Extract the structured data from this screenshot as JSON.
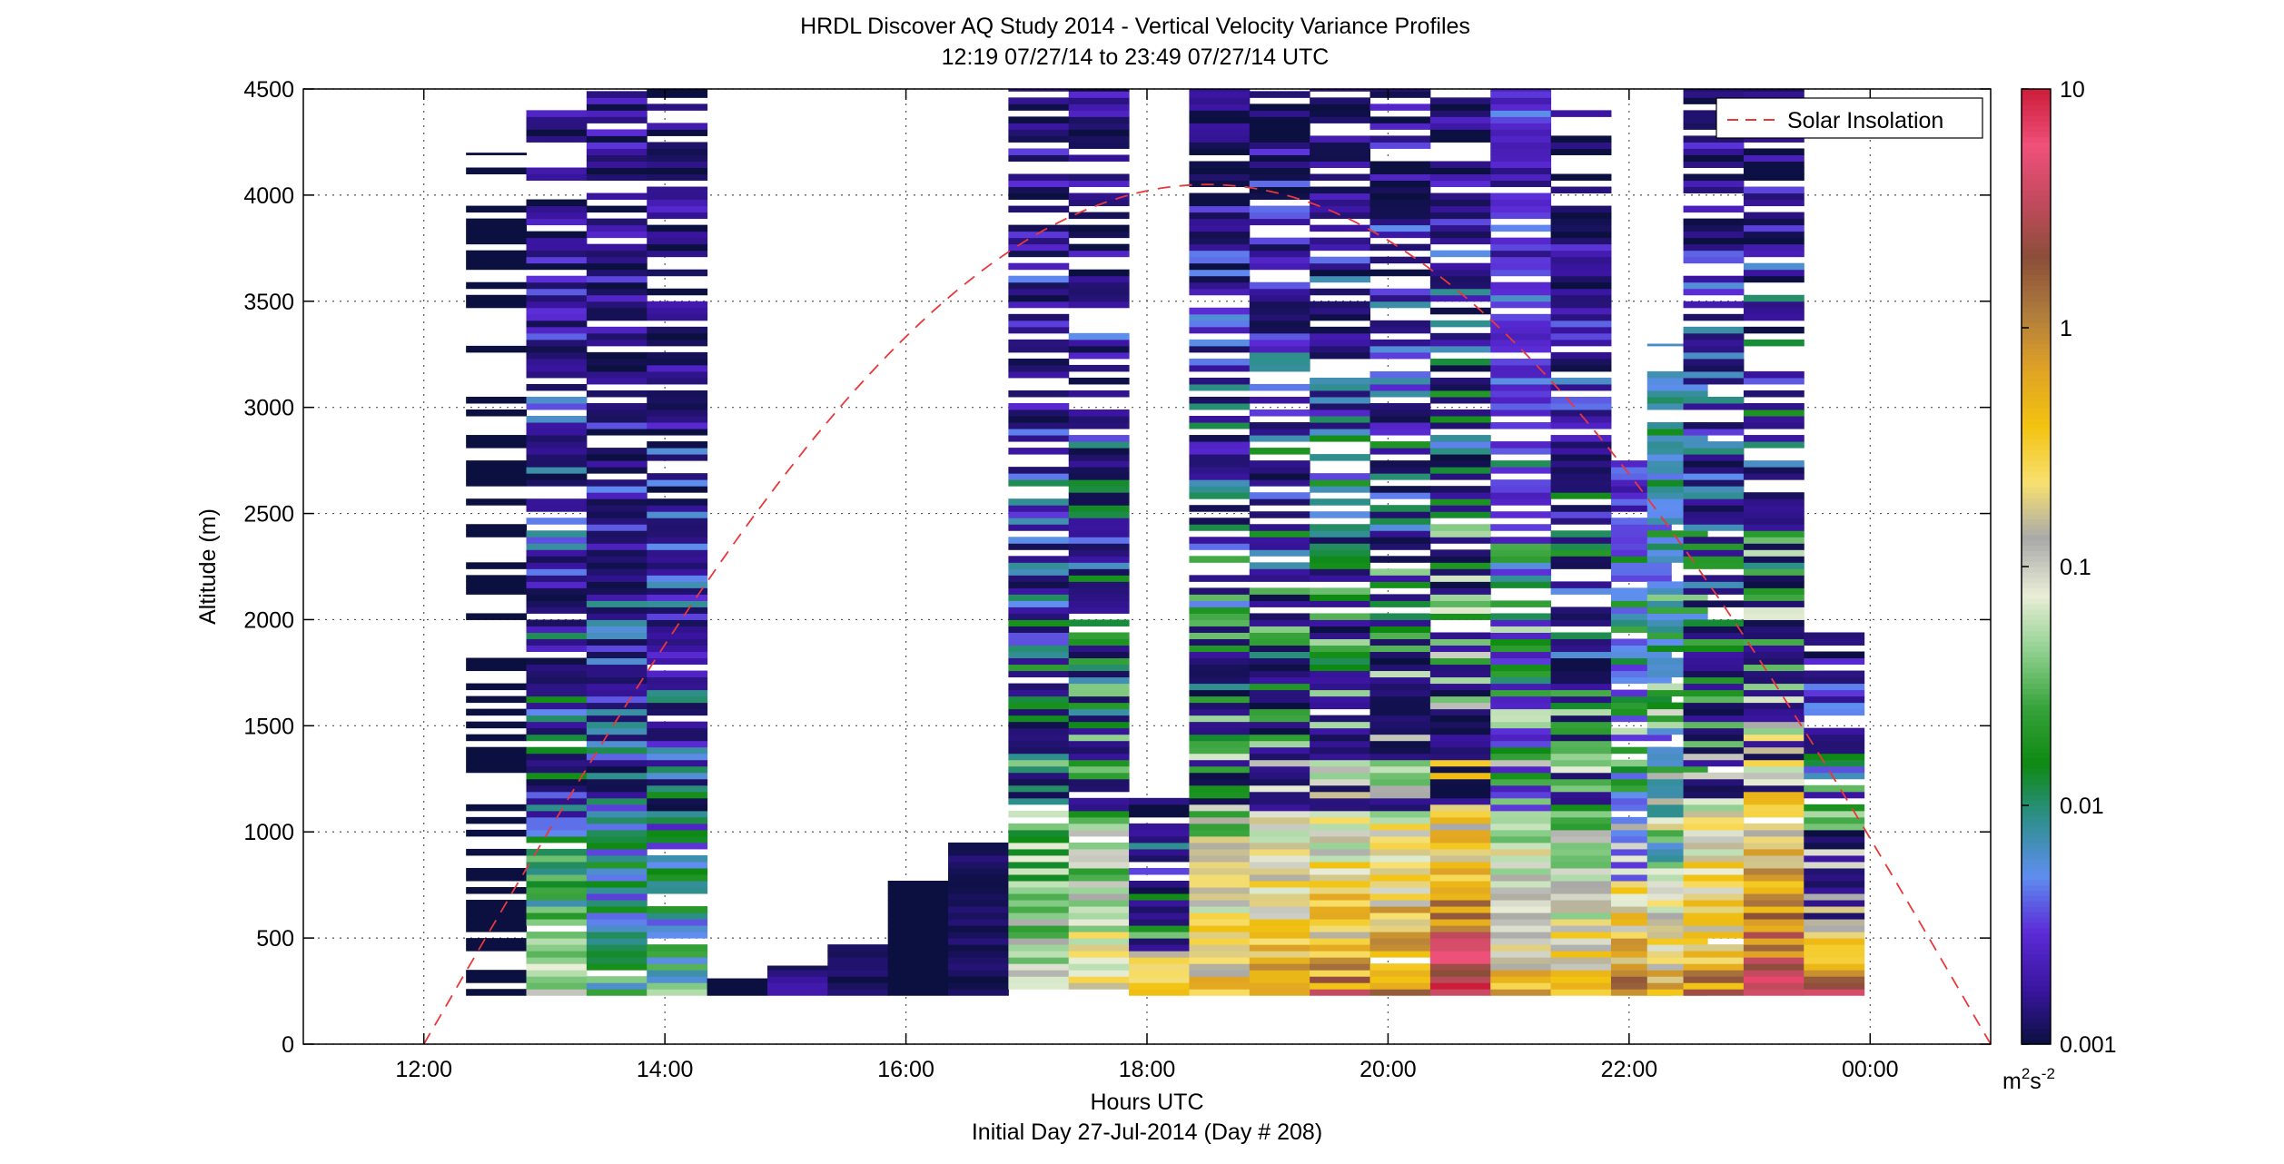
{
  "chart_data": {
    "type": "heatmap",
    "title": "HRDL Discover AQ Study 2014 - Vertical Velocity Variance Profiles",
    "subtitle": "12:19 07/27/14 to 23:49 07/27/14  UTC",
    "xlabel": "Hours UTC",
    "xlabel2": "Initial Day 27-Jul-2014 (Day # 208)",
    "ylabel": "Altitude (m)",
    "xlim": [
      11.0,
      25.0
    ],
    "ylim": [
      0,
      4500
    ],
    "x_ticks": [
      12,
      14,
      16,
      18,
      20,
      22,
      24
    ],
    "x_tick_labels": [
      "12:00",
      "14:00",
      "16:00",
      "18:00",
      "20:00",
      "22:00",
      "00:00"
    ],
    "y_ticks": [
      0,
      500,
      1000,
      1500,
      2000,
      2500,
      3000,
      3500,
      4000,
      4500
    ],
    "y_tick_labels": [
      "0",
      "500",
      "1000",
      "1500",
      "2000",
      "2500",
      "3000",
      "3500",
      "4000",
      "4500"
    ],
    "grid": true,
    "colorbar": {
      "scale": "log",
      "range": [
        0.001,
        10
      ],
      "tick_values": [
        0.001,
        0.01,
        0.1,
        1,
        10
      ],
      "tick_labels": [
        "0.001",
        "0.01",
        "0.1",
        "1",
        "10"
      ],
      "unit_main": "m",
      "unit_sup1": "2",
      "unit_mid": "s",
      "unit_sup2": "-2",
      "colors": [
        "#0b1040",
        "#3a15a0",
        "#5b2bd6",
        "#5f8ef0",
        "#2f8f8f",
        "#0e8a12",
        "#37a33b",
        "#8fd08f",
        "#eaeed8",
        "#a9a9a9",
        "#f8e070",
        "#f2c310",
        "#e0a325",
        "#b07d3d",
        "#8b4e39",
        "#c24a5e",
        "#f0507a",
        "#cc1d3a"
      ]
    },
    "legend": {
      "label": "Solar Insolation",
      "placement": "top-right",
      "color": "#e8383a"
    },
    "solar_curve": {
      "x_start": 12.0,
      "x_end": 25.0,
      "y_peak": 4050,
      "x_peak": 18.5
    },
    "profiles": [
      {
        "t": 12.6,
        "top": 4200,
        "style": "sparse",
        "min": 0.001,
        "max": 0.001
      },
      {
        "t": 13.1,
        "top": 4400,
        "style": "clear",
        "min": 0.001,
        "max": 0.05
      },
      {
        "t": 13.6,
        "top": 4500,
        "style": "clear",
        "min": 0.001,
        "max": 0.02
      },
      {
        "t": 14.1,
        "top": 4500,
        "style": "clear",
        "min": 0.001,
        "max": 0.02
      },
      {
        "t": 14.6,
        "top": 310,
        "style": "dense",
        "min": 0.001,
        "max": 0.001
      },
      {
        "t": 15.1,
        "top": 370,
        "style": "dense",
        "min": 0.001,
        "max": 0.01
      },
      {
        "t": 15.6,
        "top": 470,
        "style": "dense",
        "min": 0.001,
        "max": 0.003
      },
      {
        "t": 16.1,
        "top": 770,
        "style": "dense",
        "min": 0.001,
        "max": 0.001
      },
      {
        "t": 16.6,
        "top": 950,
        "style": "dense",
        "min": 0.001,
        "max": 0.003
      },
      {
        "t": 17.1,
        "top": 4500,
        "style": "clear",
        "min": 0.001,
        "max": 0.15
      },
      {
        "t": 17.6,
        "top": 4500,
        "style": "clear",
        "min": 0.001,
        "max": 0.3
      },
      {
        "t": 18.1,
        "top": 1180,
        "style": "mixed",
        "min": 0.001,
        "max": 1.0
      },
      {
        "t": 18.6,
        "top": 4500,
        "style": "mixed",
        "min": 0.001,
        "max": 0.6
      },
      {
        "t": 19.1,
        "top": 4500,
        "style": "mixed",
        "min": 0.001,
        "max": 1.2
      },
      {
        "t": 19.6,
        "top": 4500,
        "style": "mixed",
        "min": 0.001,
        "max": 1.5
      },
      {
        "t": 20.1,
        "top": 4500,
        "style": "mixed",
        "min": 0.001,
        "max": 2.0
      },
      {
        "t": 20.6,
        "top": 4500,
        "style": "mixed",
        "min": 0.001,
        "max": 8.0
      },
      {
        "t": 21.1,
        "top": 4500,
        "style": "mixed",
        "min": 0.002,
        "max": 0.5
      },
      {
        "t": 21.6,
        "top": 4500,
        "style": "mixed",
        "min": 0.001,
        "max": 0.4
      },
      {
        "t": 22.1,
        "top": 2750,
        "style": "mixed",
        "min": 0.003,
        "max": 1.5
      },
      {
        "t": 22.4,
        "top": 3300,
        "style": "mixed",
        "min": 0.005,
        "max": 0.6
      },
      {
        "t": 22.7,
        "top": 4500,
        "style": "mixed",
        "min": 0.001,
        "max": 1.5
      },
      {
        "t": 23.2,
        "top": 4500,
        "style": "mixed",
        "min": 0.001,
        "max": 6.0
      },
      {
        "t": 23.7,
        "top": 1940,
        "style": "mixed",
        "min": 0.001,
        "max": 6.0
      }
    ]
  }
}
